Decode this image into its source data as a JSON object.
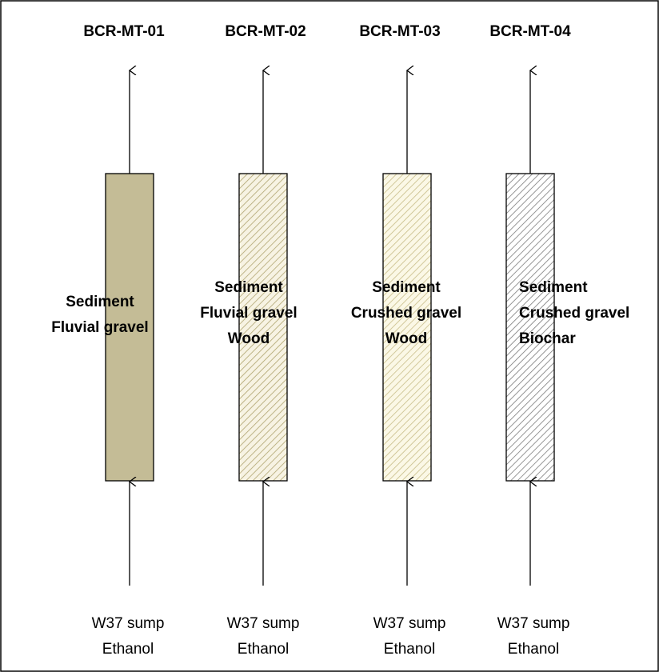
{
  "columns": [
    {
      "title": "BCR-MT-01",
      "media": [
        "Sediment",
        "Fluvial gravel"
      ],
      "influent": [
        "W37 sump",
        "Ethanol"
      ]
    },
    {
      "title": "BCR-MT-02",
      "media": [
        "Sediment",
        "Fluvial gravel",
        "Wood"
      ],
      "influent": [
        "W37 sump",
        "Ethanol"
      ]
    },
    {
      "title": "BCR-MT-03",
      "media": [
        "Sediment",
        "Crushed gravel",
        "Wood"
      ],
      "influent": [
        "W37 sump",
        "Ethanol"
      ]
    },
    {
      "title": "BCR-MT-04",
      "media": [
        "Sediment",
        "Crushed gravel",
        "Biochar"
      ],
      "influent": [
        "W37 sump",
        "Ethanol"
      ]
    }
  ]
}
